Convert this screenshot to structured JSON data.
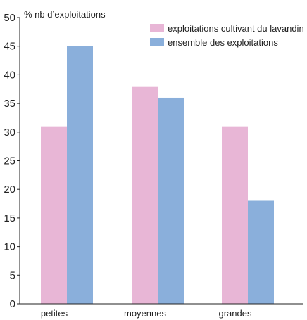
{
  "chart_data": {
    "type": "bar",
    "ylabel": "% nb d’exploitations",
    "categories": [
      "petites",
      "moyennes",
      "grandes"
    ],
    "series": [
      {
        "name": "exploitations cultivant du lavandin",
        "color": "#e8b6d6",
        "values": [
          31,
          38,
          31
        ]
      },
      {
        "name": "ensemble des exploitations",
        "color": "#8aafdb",
        "values": [
          45,
          36,
          18
        ]
      }
    ],
    "ylim": [
      0,
      50
    ],
    "yticks": [
      0,
      5,
      10,
      15,
      20,
      25,
      30,
      35,
      40,
      45,
      50
    ],
    "grid": false,
    "legend": "top-right"
  }
}
